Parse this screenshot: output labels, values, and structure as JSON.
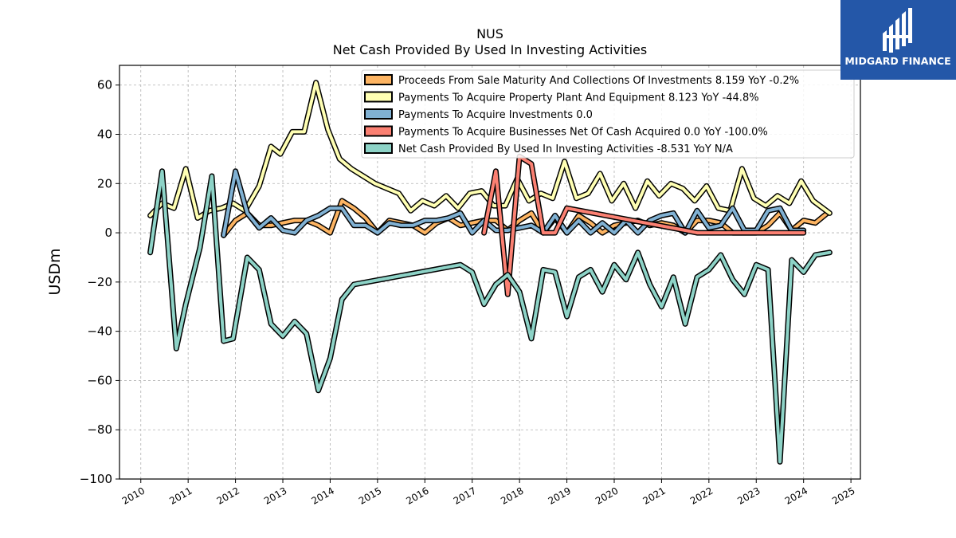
{
  "chart_data": {
    "type": "line",
    "title": "NUS",
    "subtitle": "Net Cash Provided By Used In Investing Activities",
    "ylabel": "USDm",
    "xlabel": "",
    "xlim": [
      2009.55,
      2025.2
    ],
    "ylim": [
      -100,
      68
    ],
    "grid": true,
    "legend_position": "top-right",
    "x_ticks": [
      2010,
      2011,
      2012,
      2013,
      2014,
      2015,
      2016,
      2017,
      2018,
      2019,
      2020,
      2021,
      2022,
      2023,
      2024,
      2025
    ],
    "y_ticks": [
      60,
      40,
      20,
      0,
      -20,
      -40,
      -60,
      -80,
      -100
    ],
    "y_tick_labels": [
      "60",
      "40",
      "20",
      "0",
      "−20",
      "−40",
      "−60",
      "−80",
      "−100"
    ],
    "series": [
      {
        "name": "Proceeds From Sale Maturity And Collections Of Investments",
        "legend": "Proceeds From Sale Maturity And Collections Of Investments  8.159 YoY -0.2%",
        "color": "#fdb462",
        "points": [
          [
            2011.75,
            -1
          ],
          [
            2012.0,
            5
          ],
          [
            2012.25,
            8
          ],
          [
            2012.5,
            3
          ],
          [
            2012.75,
            3
          ],
          [
            2013.0,
            4
          ],
          [
            2013.25,
            5
          ],
          [
            2013.5,
            5
          ],
          [
            2013.75,
            3
          ],
          [
            2014.0,
            0
          ],
          [
            2014.25,
            13
          ],
          [
            2014.5,
            10
          ],
          [
            2014.75,
            6
          ],
          [
            2015.0,
            0
          ],
          [
            2015.25,
            5
          ],
          [
            2015.5,
            4
          ],
          [
            2015.75,
            3
          ],
          [
            2016.0,
            0
          ],
          [
            2016.25,
            4
          ],
          [
            2016.5,
            6
          ],
          [
            2016.75,
            3
          ],
          [
            2017.0,
            4
          ],
          [
            2017.25,
            5
          ],
          [
            2017.5,
            5
          ],
          [
            2017.75,
            1
          ],
          [
            2018.0,
            5
          ],
          [
            2018.25,
            8
          ],
          [
            2018.5,
            0
          ],
          [
            2018.75,
            6
          ],
          [
            2019.0,
            0
          ],
          [
            2019.25,
            7
          ],
          [
            2019.5,
            4
          ],
          [
            2019.75,
            0
          ],
          [
            2020.0,
            3
          ],
          [
            2020.25,
            4
          ],
          [
            2020.5,
            5
          ],
          [
            2020.75,
            3
          ],
          [
            2021.0,
            4
          ],
          [
            2021.25,
            3
          ],
          [
            2021.5,
            0
          ],
          [
            2021.75,
            5
          ],
          [
            2022.0,
            5
          ],
          [
            2022.25,
            4
          ],
          [
            2022.5,
            0
          ],
          [
            2022.75,
            0
          ],
          [
            2023.0,
            0
          ],
          [
            2023.25,
            3
          ],
          [
            2023.5,
            8
          ],
          [
            2023.75,
            1
          ],
          [
            2024.0,
            5
          ],
          [
            2024.25,
            4
          ],
          [
            2024.5,
            8
          ]
        ]
      },
      {
        "name": "Payments To Acquire Property Plant And Equipment",
        "legend": "Payments To Acquire Property Plant And Equipment  8.123 YoY -44.8%",
        "color": "#ffffb3",
        "points": [
          [
            2010.2,
            7
          ],
          [
            2010.45,
            12
          ],
          [
            2010.7,
            10
          ],
          [
            2010.95,
            26
          ],
          [
            2011.2,
            6
          ],
          [
            2011.45,
            9
          ],
          [
            2011.7,
            10
          ],
          [
            2011.95,
            12
          ],
          [
            2012.2,
            9
          ],
          [
            2012.5,
            19
          ],
          [
            2012.75,
            35
          ],
          [
            2012.95,
            32
          ],
          [
            2013.2,
            41
          ],
          [
            2013.45,
            41
          ],
          [
            2013.7,
            61
          ],
          [
            2013.95,
            42
          ],
          [
            2014.2,
            30
          ],
          [
            2014.45,
            26
          ],
          [
            2014.7,
            23
          ],
          [
            2014.95,
            20
          ],
          [
            2015.2,
            18
          ],
          [
            2015.45,
            16
          ],
          [
            2015.7,
            9
          ],
          [
            2015.95,
            13
          ],
          [
            2016.2,
            11
          ],
          [
            2016.45,
            15
          ],
          [
            2016.7,
            10
          ],
          [
            2016.95,
            16
          ],
          [
            2017.2,
            17
          ],
          [
            2017.45,
            11
          ],
          [
            2017.7,
            11
          ],
          [
            2017.95,
            22
          ],
          [
            2018.2,
            13
          ],
          [
            2018.45,
            16
          ],
          [
            2018.7,
            14
          ],
          [
            2018.95,
            29
          ],
          [
            2019.2,
            14
          ],
          [
            2019.45,
            16
          ],
          [
            2019.7,
            24
          ],
          [
            2019.95,
            13
          ],
          [
            2020.2,
            20
          ],
          [
            2020.45,
            10
          ],
          [
            2020.7,
            21
          ],
          [
            2020.95,
            15
          ],
          [
            2021.2,
            20
          ],
          [
            2021.45,
            18
          ],
          [
            2021.7,
            13
          ],
          [
            2021.95,
            19
          ],
          [
            2022.2,
            10
          ],
          [
            2022.45,
            9
          ],
          [
            2022.7,
            26
          ],
          [
            2022.95,
            14
          ],
          [
            2023.2,
            11
          ],
          [
            2023.45,
            15
          ],
          [
            2023.7,
            12
          ],
          [
            2023.95,
            21
          ],
          [
            2024.2,
            13
          ],
          [
            2024.55,
            8
          ]
        ]
      },
      {
        "name": "Payments To Acquire Investments",
        "legend": "Payments To Acquire Investments  0.0",
        "color": "#80b1d3",
        "points": [
          [
            2011.75,
            -1
          ],
          [
            2012.0,
            25
          ],
          [
            2012.25,
            8
          ],
          [
            2012.5,
            2
          ],
          [
            2012.75,
            6
          ],
          [
            2013.0,
            1
          ],
          [
            2013.25,
            0
          ],
          [
            2013.5,
            5
          ],
          [
            2013.75,
            7
          ],
          [
            2014.0,
            10
          ],
          [
            2014.25,
            10
          ],
          [
            2014.5,
            3
          ],
          [
            2014.75,
            3
          ],
          [
            2015.0,
            0
          ],
          [
            2015.25,
            4
          ],
          [
            2015.5,
            3
          ],
          [
            2015.75,
            3
          ],
          [
            2016.0,
            5
          ],
          [
            2016.25,
            5
          ],
          [
            2016.5,
            6
          ],
          [
            2016.75,
            8
          ],
          [
            2017.0,
            0
          ],
          [
            2017.25,
            5
          ],
          [
            2017.5,
            1
          ],
          [
            2017.75,
            1
          ],
          [
            2018.0,
            2
          ],
          [
            2018.25,
            3
          ],
          [
            2018.5,
            0
          ],
          [
            2018.75,
            7
          ],
          [
            2019.0,
            0
          ],
          [
            2019.25,
            5
          ],
          [
            2019.5,
            0
          ],
          [
            2019.75,
            4
          ],
          [
            2020.0,
            0
          ],
          [
            2020.25,
            5
          ],
          [
            2020.5,
            0
          ],
          [
            2020.75,
            5
          ],
          [
            2021.0,
            7
          ],
          [
            2021.25,
            8
          ],
          [
            2021.5,
            0
          ],
          [
            2021.75,
            9
          ],
          [
            2022.0,
            2
          ],
          [
            2022.25,
            3
          ],
          [
            2022.5,
            10
          ],
          [
            2022.75,
            1
          ],
          [
            2023.0,
            1
          ],
          [
            2023.25,
            9
          ],
          [
            2023.5,
            10
          ],
          [
            2023.75,
            1
          ],
          [
            2024.0,
            1
          ]
        ]
      },
      {
        "name": "Payments To Acquire Businesses Net Of Cash Acquired",
        "legend": "Payments To Acquire Businesses Net Of Cash Acquired  0.0 YoY -100.0%",
        "color": "#fb8072",
        "points": [
          [
            2017.25,
            0
          ],
          [
            2017.5,
            25
          ],
          [
            2017.75,
            -25
          ],
          [
            2018.0,
            31
          ],
          [
            2018.25,
            28
          ],
          [
            2018.5,
            0
          ],
          [
            2018.75,
            0
          ],
          [
            2019.0,
            10
          ],
          [
            2021.5,
            1
          ],
          [
            2021.75,
            0
          ],
          [
            2022.0,
            0
          ],
          [
            2022.5,
            0
          ],
          [
            2023.0,
            0
          ],
          [
            2023.5,
            0
          ],
          [
            2024.0,
            0
          ]
        ]
      },
      {
        "name": "Net Cash Provided By Used In Investing Activities",
        "legend": "Net Cash Provided By Used In Investing Activities  -8.531 YoY N/A",
        "color": "#8dd3c7",
        "points": [
          [
            2010.2,
            -8
          ],
          [
            2010.45,
            25
          ],
          [
            2010.75,
            -47
          ],
          [
            2010.95,
            -29
          ],
          [
            2011.25,
            -6
          ],
          [
            2011.5,
            23
          ],
          [
            2011.75,
            -44
          ],
          [
            2011.95,
            -43
          ],
          [
            2012.25,
            -10
          ],
          [
            2012.5,
            -15
          ],
          [
            2012.75,
            -37
          ],
          [
            2013.0,
            -42
          ],
          [
            2013.25,
            -36
          ],
          [
            2013.5,
            -41
          ],
          [
            2013.75,
            -64
          ],
          [
            2014.0,
            -51
          ],
          [
            2014.25,
            -27
          ],
          [
            2014.5,
            -21
          ],
          [
            2016.75,
            -13
          ],
          [
            2017.0,
            -16
          ],
          [
            2017.25,
            -29
          ],
          [
            2017.5,
            -21
          ],
          [
            2017.75,
            -17
          ],
          [
            2018.0,
            -24
          ],
          [
            2018.25,
            -43
          ],
          [
            2018.5,
            -15
          ],
          [
            2018.75,
            -16
          ],
          [
            2019.0,
            -34
          ],
          [
            2019.25,
            -18
          ],
          [
            2019.5,
            -15
          ],
          [
            2019.75,
            -24
          ],
          [
            2020.0,
            -13
          ],
          [
            2020.25,
            -19
          ],
          [
            2020.5,
            -8
          ],
          [
            2020.75,
            -21
          ],
          [
            2021.0,
            -30
          ],
          [
            2021.25,
            -18
          ],
          [
            2021.5,
            -37
          ],
          [
            2021.75,
            -18
          ],
          [
            2022.0,
            -15
          ],
          [
            2022.25,
            -9
          ],
          [
            2022.5,
            -19
          ],
          [
            2022.75,
            -25
          ],
          [
            2023.0,
            -13
          ],
          [
            2023.25,
            -15
          ],
          [
            2023.5,
            -93
          ],
          [
            2023.75,
            -11
          ],
          [
            2024.0,
            -16
          ],
          [
            2024.25,
            -9
          ],
          [
            2024.55,
            -8
          ]
        ]
      }
    ]
  },
  "watermark": {
    "brand": "MIDGARD FINANCE",
    "background": "#2457a8"
  }
}
